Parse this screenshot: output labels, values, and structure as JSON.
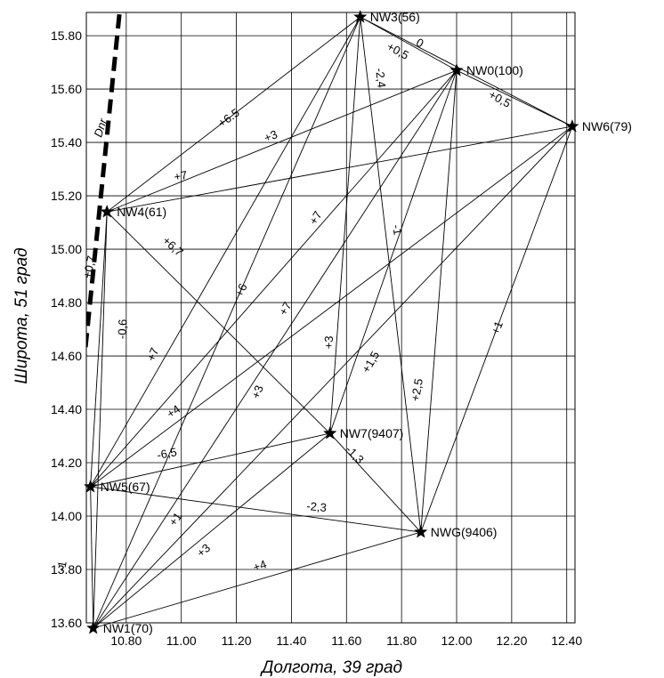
{
  "chart_data": {
    "type": "scatter",
    "title": "",
    "xlabel": "Долгота, 39 град",
    "ylabel": "Широта, 51 град",
    "xlim": [
      10.655,
      12.43
    ],
    "ylim": [
      13.6,
      15.887
    ],
    "grid": true,
    "x_ticks": [
      "10.80",
      "11.00",
      "11.20",
      "11.40",
      "11.60",
      "11.80",
      "12.00",
      "12.20",
      "12.40"
    ],
    "y_ticks": [
      "13.60",
      "13.80",
      "14.00",
      "14.20",
      "14.40",
      "14.60",
      "14.80",
      "15.00",
      "15.20",
      "15.40",
      "15.60",
      "15.80"
    ],
    "points": [
      {
        "label": "NW3(56)",
        "x": 11.65,
        "y": 15.87
      },
      {
        "label": "NW0(100)",
        "x": 12.0,
        "y": 15.67
      },
      {
        "label": "NW6(79)",
        "x": 12.42,
        "y": 15.46
      },
      {
        "label": "NW4(61)",
        "x": 10.73,
        "y": 15.14
      },
      {
        "label": "NW7(9407)",
        "x": 11.54,
        "y": 14.31
      },
      {
        "label": "NW5(67)",
        "x": 10.67,
        "y": 14.11
      },
      {
        "label": "NWG(9406)",
        "x": 11.87,
        "y": 13.94
      },
      {
        "label": "NW1(70)",
        "x": 10.68,
        "y": 13.58
      }
    ],
    "links": [
      [
        "NW3(56)",
        "NW0(100)"
      ],
      [
        "NW3(56)",
        "NW6(79)"
      ],
      [
        "NW0(100)",
        "NW6(79)"
      ],
      [
        "NW3(56)",
        "NW4(61)"
      ],
      [
        "NW0(100)",
        "NW4(61)"
      ],
      [
        "NW6(79)",
        "NW4(61)"
      ],
      [
        "NW4(61)",
        "NW7(9407)"
      ],
      [
        "NW4(61)",
        "NW5(67)"
      ],
      [
        "NW4(61)",
        "NW1(70)"
      ],
      [
        "NW7(9407)",
        "NWG(9406)"
      ],
      [
        "NW7(9407)",
        "NW3(56)"
      ],
      [
        "NW7(9407)",
        "NW0(100)"
      ],
      [
        "NW7(9407)",
        "NW5(67)"
      ],
      [
        "NW7(9407)",
        "NW1(70)"
      ],
      [
        "NW5(67)",
        "NWG(9406)"
      ],
      [
        "NW5(67)",
        "NW1(70)"
      ],
      [
        "NW5(67)",
        "NW3(56)"
      ],
      [
        "NW5(67)",
        "NW6(79)"
      ],
      [
        "NW5(67)",
        "NW0(100)"
      ],
      [
        "NW1(70)",
        "NWG(9406)"
      ],
      [
        "NW1(70)",
        "NW3(56)"
      ],
      [
        "NW1(70)",
        "NW0(100)"
      ],
      [
        "NW1(70)",
        "NW6(79)"
      ],
      [
        "NWG(9406)",
        "NW3(56)"
      ],
      [
        "NWG(9406)",
        "NW0(100)"
      ],
      [
        "NWG(9406)",
        "NW6(79)"
      ]
    ],
    "segment_labels": [
      {
        "text": "0",
        "x": 11.86,
        "y": 15.76,
        "angle": 28
      },
      {
        "text": "+0,5",
        "x": 11.78,
        "y": 15.73,
        "angle": 28
      },
      {
        "text": "+0,5",
        "x": 12.15,
        "y": 15.55,
        "angle": 28
      },
      {
        "text": "-2,4",
        "x": 11.71,
        "y": 15.64,
        "angle": 83
      },
      {
        "text": "+6.5",
        "x": 11.18,
        "y": 15.48,
        "angle": -35
      },
      {
        "text": "+3",
        "x": 11.33,
        "y": 15.41,
        "angle": -22
      },
      {
        "text": "+7",
        "x": 11.0,
        "y": 15.26,
        "angle": -10
      },
      {
        "text": "+7",
        "x": 11.5,
        "y": 15.11,
        "angle": -60
      },
      {
        "text": "-1",
        "x": 11.77,
        "y": 15.07,
        "angle": 80
      },
      {
        "text": "+6,7",
        "x": 10.96,
        "y": 15.0,
        "angle": 42
      },
      {
        "text": "+0,7",
        "x": 10.68,
        "y": 14.93,
        "angle": -78
      },
      {
        "text": "+6",
        "x": 11.23,
        "y": 14.84,
        "angle": -65
      },
      {
        "text": "+7",
        "x": 11.39,
        "y": 14.77,
        "angle": -60
      },
      {
        "text": "-0,6",
        "x": 10.8,
        "y": 14.7,
        "angle": -87
      },
      {
        "text": "+1",
        "x": 12.16,
        "y": 14.7,
        "angle": -68
      },
      {
        "text": "+3",
        "x": 11.55,
        "y": 14.65,
        "angle": -88
      },
      {
        "text": "+7",
        "x": 10.91,
        "y": 14.6,
        "angle": -68
      },
      {
        "text": "+1,5",
        "x": 11.7,
        "y": 14.57,
        "angle": -60
      },
      {
        "text": "+2,5",
        "x": 11.87,
        "y": 14.47,
        "angle": -80
      },
      {
        "text": "+3",
        "x": 11.29,
        "y": 14.46,
        "angle": -70
      },
      {
        "text": "+4",
        "x": 10.98,
        "y": 14.38,
        "angle": -35
      },
      {
        "text": "-1,3",
        "x": 11.62,
        "y": 14.22,
        "angle": 45
      },
      {
        "text": "-6,5",
        "x": 10.95,
        "y": 14.22,
        "angle": -10
      },
      {
        "text": "-2,3",
        "x": 11.49,
        "y": 14.02,
        "angle": 5
      },
      {
        "text": "+1",
        "x": 10.99,
        "y": 13.98,
        "angle": -55
      },
      {
        "text": "+3",
        "x": 11.09,
        "y": 13.86,
        "angle": -40
      },
      {
        "text": "+4",
        "x": 11.29,
        "y": 13.8,
        "angle": -20
      },
      {
        "text": "-1",
        "x": 10.58,
        "y": 13.81,
        "angle": -80
      }
    ],
    "fault_line": {
      "label": "Dnr",
      "points": [
        [
          10.775,
          15.88
        ],
        [
          10.56,
          13.7
        ]
      ],
      "label_pos": [
        10.72,
        15.45
      ]
    }
  }
}
